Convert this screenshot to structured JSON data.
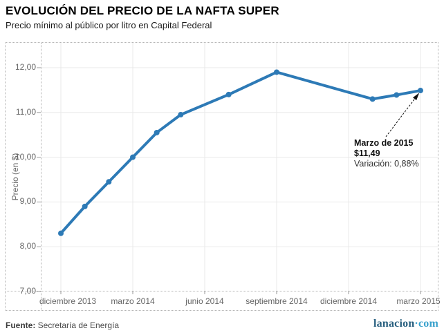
{
  "chart_data": {
    "type": "line",
    "title": "EVOLUCIÓN DEL PRECIO DE LA NAFTA SUPER",
    "subtitle": "Precio mínimo al público por litro en Capital Federal",
    "xlabel": "",
    "ylabel": "Precio (en $)",
    "ylim": [
      7,
      12
    ],
    "grid": true,
    "line_color": "#2d7ab6",
    "y_ticks": [
      {
        "label": "12,00",
        "value": 12
      },
      {
        "label": "11,00",
        "value": 11
      },
      {
        "label": "10,00",
        "value": 10
      },
      {
        "label": "9,00",
        "value": 9
      },
      {
        "label": "8,00",
        "value": 8
      },
      {
        "label": "7,00",
        "value": 7
      }
    ],
    "x_ticks": [
      {
        "label": "diciembre 2013",
        "month_index": 0
      },
      {
        "label": "marzo 2014",
        "month_index": 3
      },
      {
        "label": "junio 2014",
        "month_index": 6
      },
      {
        "label": "septiembre 2014",
        "month_index": 9
      },
      {
        "label": "diciembre 2014",
        "month_index": 12
      },
      {
        "label": "marzo 2015",
        "month_index": 15
      }
    ],
    "points": [
      {
        "month": "diciembre 2013",
        "month_index": 0,
        "value": 8.3
      },
      {
        "month": "enero 2014",
        "month_index": 1,
        "value": 8.9
      },
      {
        "month": "febrero 2014",
        "month_index": 2,
        "value": 9.45
      },
      {
        "month": "marzo 2014",
        "month_index": 3,
        "value": 10.0
      },
      {
        "month": "abril 2014",
        "month_index": 4,
        "value": 10.55
      },
      {
        "month": "mayo 2014",
        "month_index": 5,
        "value": 10.95
      },
      {
        "month": "julio 2014",
        "month_index": 7,
        "value": 11.4
      },
      {
        "month": "septiembre 2014",
        "month_index": 9,
        "value": 11.9
      },
      {
        "month": "enero 2015",
        "month_index": 13,
        "value": 11.3
      },
      {
        "month": "febrero 2015",
        "month_index": 14,
        "value": 11.39
      },
      {
        "month": "marzo 2015",
        "month_index": 15,
        "value": 11.49
      }
    ],
    "annotation": {
      "line1": "Marzo de 2015",
      "line2": "$11,49",
      "line3": "Variación: 0,88%"
    }
  },
  "footer": {
    "source_label": "Fuente:",
    "source_text": " Secretaría de Energía",
    "logo_main": "lanacion",
    "logo_dot": "·",
    "logo_suffix": "com"
  }
}
